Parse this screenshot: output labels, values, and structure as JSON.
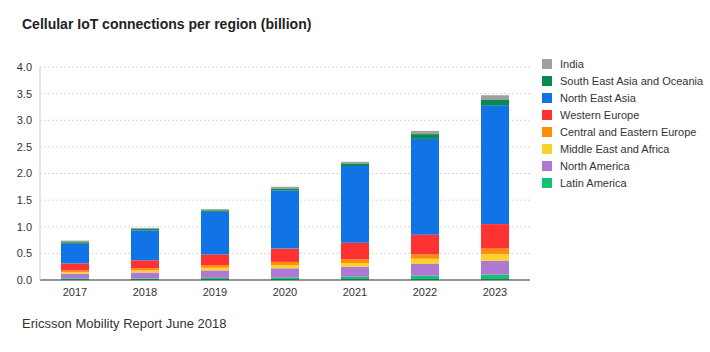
{
  "chart_data": {
    "type": "bar",
    "title": "Cellular IoT connections per region (billion)",
    "annotations": [
      "Ericsson Mobility Report June 2018"
    ],
    "stacked": true,
    "grid": true,
    "legend": "right",
    "categories": [
      "2017",
      "2018",
      "2019",
      "2020",
      "2021",
      "2022",
      "2023"
    ],
    "ylim": [
      0,
      4
    ],
    "yticks": [
      {
        "value": 0,
        "label": "0.0"
      },
      0.5,
      {
        "value": 1,
        "label": "1.0"
      },
      1.5,
      {
        "value": 2,
        "label": "2.0"
      },
      2.5,
      {
        "value": 3,
        "label": "3.0"
      },
      3.5,
      {
        "value": 4,
        "label": "4.0"
      }
    ],
    "series": [
      {
        "name": "Latin America",
        "color": "#0fc373",
        "values": [
          0.03,
          0.03,
          0.04,
          0.05,
          0.06,
          0.08,
          0.1
        ]
      },
      {
        "name": "North America",
        "color": "#af78d2",
        "values": [
          0.09,
          0.11,
          0.14,
          0.17,
          0.19,
          0.22,
          0.26
        ]
      },
      {
        "name": "Middle East and Africa",
        "color": "#fad22d",
        "values": [
          0.03,
          0.04,
          0.05,
          0.06,
          0.07,
          0.1,
          0.13
        ]
      },
      {
        "name": "Central and Eastern Europe",
        "color": "#ff8c0a",
        "values": [
          0.03,
          0.04,
          0.05,
          0.06,
          0.07,
          0.08,
          0.1
        ]
      },
      {
        "name": "Western Europe",
        "color": "#ff3232",
        "values": [
          0.13,
          0.15,
          0.2,
          0.25,
          0.31,
          0.37,
          0.46
        ]
      },
      {
        "name": "North East Asia",
        "color": "#1174e6",
        "values": [
          0.37,
          0.56,
          0.8,
          1.09,
          1.44,
          1.8,
          2.23
        ]
      },
      {
        "name": "South East Asia and Oceania",
        "color": "#0b8a4f",
        "values": [
          0.03,
          0.03,
          0.03,
          0.04,
          0.05,
          0.09,
          0.1
        ]
      },
      {
        "name": "India",
        "color": "#a0a0a0",
        "values": [
          0.03,
          0.02,
          0.02,
          0.03,
          0.03,
          0.06,
          0.09
        ]
      }
    ]
  }
}
